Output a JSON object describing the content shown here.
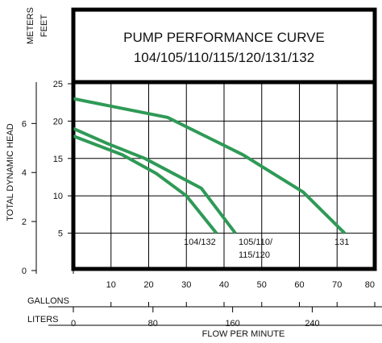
{
  "chart_data": {
    "type": "line",
    "title": "PUMP PERFORMANCE CURVE",
    "subtitle": "104/105/110/115/120/131/132",
    "xlabel": "FLOW PER MINUTE",
    "ylabel": "TOTAL DYNAMIC HEAD",
    "y_units": [
      "FEET",
      "METERS"
    ],
    "x_units": [
      "GALLONS",
      "LITERS"
    ],
    "xlim": [
      0,
      80
    ],
    "ylim": [
      0,
      25
    ],
    "x_ticks_gallons": [
      "10",
      "20",
      "30",
      "40",
      "50",
      "60",
      "70",
      "80"
    ],
    "x_ticks_liters": [
      "0",
      "80",
      "160",
      "240"
    ],
    "y_ticks_feet": [
      "5",
      "10",
      "15",
      "20",
      "25"
    ],
    "y_ticks_meters": [
      "0",
      "2",
      "4",
      "6"
    ],
    "grid": true,
    "series": [
      {
        "name": "104/132",
        "color": "#2e9a56",
        "x": [
          0,
          13,
          22,
          30,
          38
        ],
        "y": [
          18,
          15.5,
          13,
          10,
          5
        ]
      },
      {
        "name": "105/110/115/120",
        "color": "#2e9a56",
        "x": [
          0,
          9,
          19,
          34,
          43
        ],
        "y": [
          19,
          17,
          15,
          11,
          5
        ]
      },
      {
        "name": "131",
        "color": "#2e9a56",
        "x": [
          0,
          25,
          45,
          61,
          72
        ],
        "y": [
          23,
          20.5,
          15.5,
          10.5,
          5
        ]
      }
    ]
  }
}
